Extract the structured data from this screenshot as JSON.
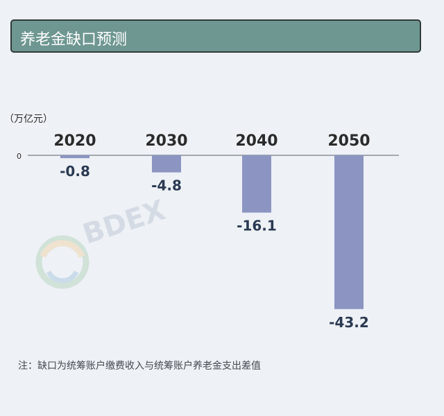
{
  "title": "养老金缺口预测",
  "note": "注：缺口为统筹账户缴费收入与统筹账户养老金支出差值",
  "watermark": "BDEX",
  "colors": {
    "background": "#eef1f5",
    "title_bg": "#6f9792",
    "bar": "#8c95c2",
    "value_label": "#2b3a52",
    "axis_label": "#2b2b2b"
  },
  "chart_data": {
    "type": "bar",
    "unit_label": "（万亿元）",
    "categories": [
      "2020",
      "2030",
      "2040",
      "2050"
    ],
    "values": [
      -0.8,
      -4.8,
      -16.1,
      -43.2
    ],
    "value_labels": [
      "-0.8",
      "-4.8",
      "-16.1",
      "-43.2"
    ],
    "baseline_label": "0",
    "ylim": [
      -45,
      0
    ],
    "category_position": "top",
    "grid": false
  }
}
